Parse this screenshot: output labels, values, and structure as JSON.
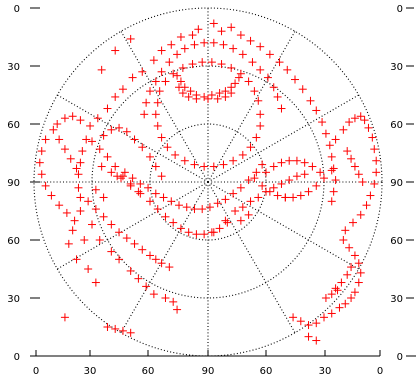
{
  "chart_data": {
    "type": "scatter",
    "projection": "polar (sky plot: radius = zenith angle, center = 90°)",
    "marker": "+",
    "marker_color": "#ff0000",
    "grid_color": "#000000",
    "grid": true,
    "title": "",
    "x_ticks": [
      "0",
      "30",
      "60",
      "90",
      "60",
      "30",
      "0"
    ],
    "y_ticks_left": [
      "0",
      "30",
      "60",
      "90",
      "60",
      "30",
      "0"
    ],
    "y_ticks_right": [
      "0",
      "30",
      "60",
      "90",
      "60",
      "30",
      "0"
    ],
    "rings_zenith_deg": [
      30,
      60,
      90
    ],
    "spoke_angles_deg": [
      0,
      30,
      60,
      90,
      120,
      150,
      180,
      210,
      240,
      270,
      300,
      330
    ],
    "points_desc": "Each point is [x, y] in zenith-angle degrees relative to the plot centre (x: negative = left, positive = right; y: positive = up). The centre is 90 on both axes.",
    "points": [
      [
        -5,
        79
      ],
      [
        -8,
        76
      ],
      [
        3,
        82
      ],
      [
        7,
        78
      ],
      [
        12,
        80
      ],
      [
        17,
        76
      ],
      [
        -14,
        75
      ],
      [
        -19,
        71
      ],
      [
        -24,
        68
      ],
      [
        -28,
        63
      ],
      [
        -34,
        57
      ],
      [
        -39,
        54
      ],
      [
        -44,
        48
      ],
      [
        -48,
        44
      ],
      [
        -52,
        38
      ],
      [
        -57,
        33
      ],
      [
        -61,
        29
      ],
      [
        -63,
        22
      ],
      [
        -65,
        16
      ],
      [
        -66,
        10
      ],
      [
        -67,
        4
      ],
      [
        -67,
        -3
      ],
      [
        -66,
        -8
      ],
      [
        22,
        73
      ],
      [
        27,
        70
      ],
      [
        32,
        66
      ],
      [
        37,
        62
      ],
      [
        41,
        58
      ],
      [
        45,
        53
      ],
      [
        49,
        48
      ],
      [
        53,
        42
      ],
      [
        56,
        37
      ],
      [
        59,
        31
      ],
      [
        61,
        25
      ],
      [
        63,
        19
      ],
      [
        64,
        13
      ],
      [
        65,
        7
      ],
      [
        66,
        1
      ],
      [
        65,
        -5
      ],
      [
        64,
        -10
      ],
      [
        -12,
        69
      ],
      [
        -7,
        71
      ],
      [
        -2,
        72
      ],
      [
        3,
        72
      ],
      [
        8,
        71
      ],
      [
        13,
        69
      ],
      [
        18,
        66
      ],
      [
        23,
        62
      ],
      [
        27,
        58
      ],
      [
        31,
        54
      ],
      [
        34,
        49
      ],
      [
        36,
        44
      ],
      [
        38,
        38
      ],
      [
        -16,
        66
      ],
      [
        -20,
        62
      ],
      [
        -24,
        57
      ],
      [
        -27,
        52
      ],
      [
        -30,
        47
      ],
      [
        -32,
        41
      ],
      [
        -33,
        35
      ],
      [
        -18,
        56
      ],
      [
        -13,
        59
      ],
      [
        -8,
        61
      ],
      [
        -3,
        62
      ],
      [
        2,
        62
      ],
      [
        7,
        61
      ],
      [
        12,
        59
      ],
      [
        17,
        56
      ],
      [
        21,
        52
      ],
      [
        24,
        47
      ],
      [
        26,
        42
      ],
      [
        -22,
        52
      ],
      [
        -25,
        47
      ],
      [
        -26,
        41
      ],
      [
        -27,
        35
      ],
      [
        -26,
        29
      ],
      [
        -24,
        23
      ],
      [
        -21,
        18
      ],
      [
        -17,
        14
      ],
      [
        -12,
        11
      ],
      [
        -7,
        9
      ],
      [
        -2,
        8
      ],
      [
        3,
        8
      ],
      [
        8,
        9
      ],
      [
        13,
        11
      ],
      [
        18,
        14
      ],
      [
        22,
        18
      ],
      [
        25,
        23
      ],
      [
        27,
        29
      ],
      [
        27,
        35
      ],
      [
        -2,
        44
      ],
      [
        -6,
        45
      ],
      [
        2,
        45
      ],
      [
        6,
        46
      ],
      [
        9,
        47
      ],
      [
        12,
        49
      ],
      [
        14,
        51
      ],
      [
        16,
        54
      ],
      [
        -9,
        47
      ],
      [
        -12,
        49
      ],
      [
        -14,
        52
      ],
      [
        -16,
        55
      ],
      [
        -15,
        49
      ],
      [
        -13,
        46
      ],
      [
        -10,
        44
      ],
      [
        -6,
        43
      ],
      [
        0,
        43
      ],
      [
        5,
        43
      ],
      [
        9,
        44
      ],
      [
        12,
        46
      ],
      [
        -80,
        27
      ],
      [
        -77,
        22
      ],
      [
        -74,
        17
      ],
      [
        -71,
        12
      ],
      [
        -68,
        7
      ],
      [
        -84,
        22
      ],
      [
        -86,
        16
      ],
      [
        -87,
        10
      ],
      [
        -86,
        4
      ],
      [
        -84,
        -2
      ],
      [
        -81,
        -7
      ],
      [
        -77,
        -12
      ],
      [
        -73,
        -16
      ],
      [
        -69,
        -20
      ],
      [
        -78,
        30
      ],
      [
        -74,
        33
      ],
      [
        -70,
        34
      ],
      [
        -66,
        32
      ],
      [
        -60,
        21
      ],
      [
        -56,
        17
      ],
      [
        -52,
        13
      ],
      [
        -48,
        8
      ],
      [
        -44,
        3
      ],
      [
        -40,
        -1
      ],
      [
        -36,
        -5
      ],
      [
        -54,
        24
      ],
      [
        -50,
        27
      ],
      [
        -46,
        28
      ],
      [
        -42,
        26
      ],
      [
        -38,
        22
      ],
      [
        -34,
        18
      ],
      [
        -30,
        13
      ],
      [
        -27,
        8
      ],
      [
        -24,
        3
      ],
      [
        -55,
        8
      ],
      [
        -50,
        5
      ],
      [
        -45,
        2
      ],
      [
        -40,
        -2
      ],
      [
        -35,
        -6
      ],
      [
        -30,
        -10
      ],
      [
        -26,
        -14
      ],
      [
        -22,
        -18
      ],
      [
        -18,
        -21
      ],
      [
        -14,
        -24
      ],
      [
        -10,
        -26
      ],
      [
        -6,
        -27
      ],
      [
        -2,
        -27
      ],
      [
        2,
        -26
      ],
      [
        6,
        -24
      ],
      [
        10,
        -21
      ],
      [
        -58,
        -4
      ],
      [
        -54,
        -8
      ],
      [
        -62,
        -10
      ],
      [
        -58,
        -14
      ],
      [
        -54,
        -18
      ],
      [
        -50,
        -22
      ],
      [
        -46,
        -26
      ],
      [
        -42,
        -29
      ],
      [
        -38,
        -32
      ],
      [
        -34,
        -35
      ],
      [
        -30,
        -38
      ],
      [
        -27,
        -40
      ],
      [
        -24,
        -42
      ],
      [
        -20,
        -44
      ],
      [
        -66,
        -15
      ],
      [
        -70,
        -25
      ],
      [
        -72,
        -32
      ],
      [
        -68,
        -40
      ],
      [
        -62,
        -45
      ],
      [
        -58,
        -52
      ],
      [
        -56,
        -30
      ],
      [
        -50,
        -36
      ],
      [
        -46,
        -40
      ],
      [
        -40,
        -46
      ],
      [
        -36,
        -50
      ],
      [
        -32,
        -54
      ],
      [
        -28,
        -58
      ],
      [
        -60,
        -22
      ],
      [
        -64,
        -30
      ],
      [
        -47,
        3
      ],
      [
        -43,
        5
      ],
      [
        -39,
        2
      ],
      [
        -35,
        -1
      ],
      [
        -31,
        -3
      ],
      [
        -27,
        -6
      ],
      [
        -23,
        -8
      ],
      [
        -19,
        -10
      ],
      [
        -15,
        -12
      ],
      [
        -11,
        -13
      ],
      [
        -7,
        -14
      ],
      [
        -3,
        -14
      ],
      [
        1,
        -13
      ],
      [
        5,
        -11
      ],
      [
        9,
        -9
      ],
      [
        13,
        -6
      ],
      [
        17,
        -3
      ],
      [
        21,
        1
      ],
      [
        25,
        5
      ],
      [
        28,
        9
      ],
      [
        24,
        2
      ],
      [
        28,
        -2
      ],
      [
        32,
        -5
      ],
      [
        36,
        -7
      ],
      [
        40,
        -8
      ],
      [
        44,
        -8
      ],
      [
        48,
        -7
      ],
      [
        52,
        -5
      ],
      [
        56,
        -2
      ],
      [
        60,
        2
      ],
      [
        64,
        6
      ],
      [
        30,
        5
      ],
      [
        34,
        8
      ],
      [
        38,
        10
      ],
      [
        42,
        11
      ],
      [
        46,
        11
      ],
      [
        50,
        10
      ],
      [
        54,
        8
      ],
      [
        58,
        5
      ],
      [
        66,
        22
      ],
      [
        70,
        27
      ],
      [
        73,
        31
      ],
      [
        76,
        33
      ],
      [
        79,
        34
      ],
      [
        81,
        32
      ],
      [
        83,
        28
      ],
      [
        85,
        23
      ],
      [
        86,
        17
      ],
      [
        87,
        11
      ],
      [
        87,
        5
      ],
      [
        86,
        -1
      ],
      [
        84,
        -7
      ],
      [
        82,
        -12
      ],
      [
        79,
        -17
      ],
      [
        75,
        -21
      ],
      [
        71,
        -25
      ],
      [
        72,
        16
      ],
      [
        74,
        12
      ],
      [
        76,
        8
      ],
      [
        78,
        4
      ],
      [
        80,
        0
      ],
      [
        70,
        -30
      ],
      [
        73,
        -34
      ],
      [
        76,
        -38
      ],
      [
        78,
        -42
      ],
      [
        79,
        -47
      ],
      [
        78,
        -52
      ],
      [
        76,
        -57
      ],
      [
        74,
        -60
      ],
      [
        71,
        -63
      ],
      [
        68,
        -65
      ],
      [
        64,
        -68
      ],
      [
        60,
        -70
      ],
      [
        56,
        -73
      ],
      [
        52,
        -74
      ],
      [
        74,
        -44
      ],
      [
        72,
        -48
      ],
      [
        69,
        -52
      ],
      [
        66,
        -55
      ],
      [
        14,
        -15
      ],
      [
        18,
        -13
      ],
      [
        22,
        -10
      ],
      [
        26,
        -8
      ],
      [
        30,
        -5
      ],
      [
        34,
        -3
      ],
      [
        38,
        -1
      ],
      [
        42,
        1
      ],
      [
        46,
        3
      ],
      [
        50,
        4
      ],
      [
        17,
        -20
      ],
      [
        21,
        -17
      ],
      [
        -74,
        -70
      ],
      [
        -52,
        -75
      ],
      [
        -48,
        -76
      ],
      [
        -44,
        -77
      ],
      [
        -40,
        -78
      ],
      [
        -22,
        -60
      ],
      [
        -18,
        -62
      ],
      [
        -16,
        -66
      ],
      [
        44,
        -70
      ],
      [
        48,
        -72
      ],
      [
        52,
        -80
      ],
      [
        56,
        -82
      ],
      [
        61,
        -60
      ],
      [
        64,
        -58
      ],
      [
        67,
        -56
      ],
      [
        40,
        -8
      ],
      [
        3,
        -26
      ],
      [
        9,
        -20
      ],
      [
        -40,
        74
      ],
      [
        -48,
        68
      ],
      [
        -55,
        58
      ]
    ]
  }
}
